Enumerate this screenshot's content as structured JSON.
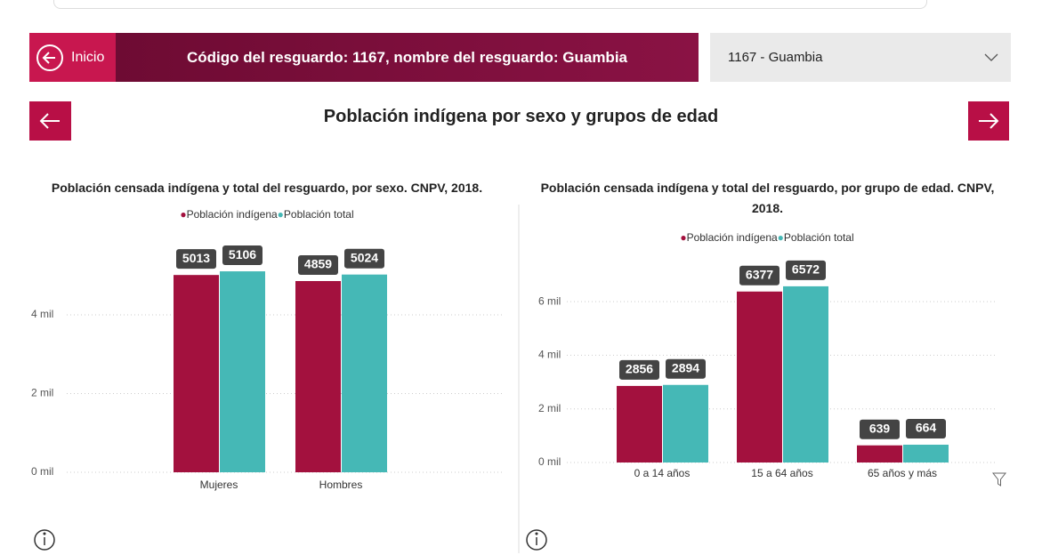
{
  "header": {
    "home": "Inicio",
    "title": "Código del resguardo: 1167, nombre del resguardo: Guambia",
    "dropdown": "1167 - Guambia"
  },
  "page_title": "Población indígena por sexo y grupos de edad",
  "chart_data": [
    {
      "type": "bar",
      "title": "Población censada indígena y total del resguardo, por sexo. CNPV, 2018.",
      "categories": [
        "Mujeres",
        "Hombres"
      ],
      "series": [
        {
          "name": "Población indígena",
          "color": "#a3113e",
          "values": [
            5013,
            4859
          ]
        },
        {
          "name": "Población total",
          "color": "#45b8b6",
          "values": [
            5106,
            5024
          ]
        }
      ],
      "ylim": [
        0,
        6000
      ],
      "yticks": [
        {
          "value": 0,
          "label": "0 mil"
        },
        {
          "value": 2000,
          "label": "2 mil"
        },
        {
          "value": 4000,
          "label": "4 mil"
        }
      ],
      "grid": true,
      "legend": "top"
    },
    {
      "type": "bar",
      "title": "Población censada indígena y total del resguardo, por grupo de edad. CNPV, 2018.",
      "categories": [
        "0 a 14 años",
        "15 a 64 años",
        "65 años y más"
      ],
      "series": [
        {
          "name": "Población indígena",
          "color": "#a3113e",
          "values": [
            2856,
            6377,
            639
          ]
        },
        {
          "name": "Población total",
          "color": "#45b8b6",
          "values": [
            2894,
            6572,
            664
          ]
        }
      ],
      "ylim": [
        0,
        7000
      ],
      "yticks": [
        {
          "value": 0,
          "label": "0 mil"
        },
        {
          "value": 2000,
          "label": "2 mil"
        },
        {
          "value": 4000,
          "label": "4 mil"
        },
        {
          "value": 6000,
          "label": "6 mil"
        }
      ],
      "grid": true,
      "legend": "top"
    }
  ]
}
